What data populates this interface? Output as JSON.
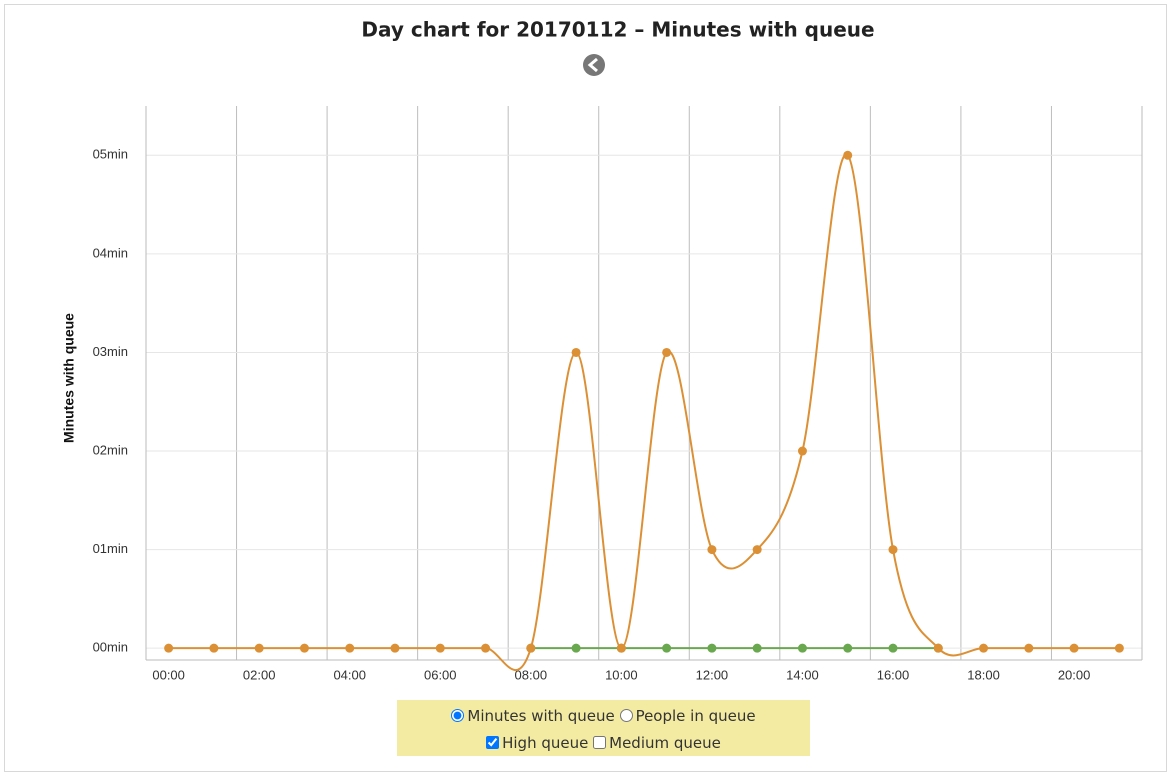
{
  "chart_data": {
    "type": "line",
    "title": "Day chart for 20170112 – Minutes with queue",
    "y_label": "Minutes with queue",
    "categories": [
      "00:00",
      null,
      "02:00",
      null,
      "04:00",
      null,
      "06:00",
      null,
      "08:00",
      null,
      "10:00",
      null,
      "12:00",
      null,
      "14:00",
      null,
      "16:00",
      null,
      "18:00",
      null,
      "20:00",
      null
    ],
    "series": [
      {
        "color": "#6aa84f",
        "values": [
          null,
          null,
          null,
          null,
          null,
          null,
          null,
          null,
          0,
          0,
          0,
          0,
          0,
          0,
          0,
          0,
          0,
          0,
          null,
          null,
          null,
          null
        ]
      },
      {
        "color": "#dc9035",
        "values": [
          0,
          0,
          0,
          0,
          0,
          0,
          0,
          0,
          0,
          3,
          0,
          3,
          1,
          1,
          2,
          5,
          1,
          0,
          0,
          0,
          0,
          0
        ]
      }
    ],
    "ylim": [
      -0.12,
      5.5
    ],
    "yticks": [
      {
        "value": 0,
        "label": "00min"
      },
      {
        "value": 1,
        "label": "01min"
      },
      {
        "value": 2,
        "label": "02min"
      },
      {
        "value": 3,
        "label": "03min"
      },
      {
        "value": 4,
        "label": "04min"
      },
      {
        "value": 5,
        "label": "05min"
      }
    ],
    "grid": true
  },
  "controls": {
    "radios": [
      {
        "label": "Minutes with queue",
        "checked": true
      },
      {
        "label": "People in queue",
        "checked": false
      }
    ],
    "checkboxes": [
      {
        "label": "High queue",
        "checked": true
      },
      {
        "label": "Medium queue",
        "checked": false
      }
    ]
  }
}
